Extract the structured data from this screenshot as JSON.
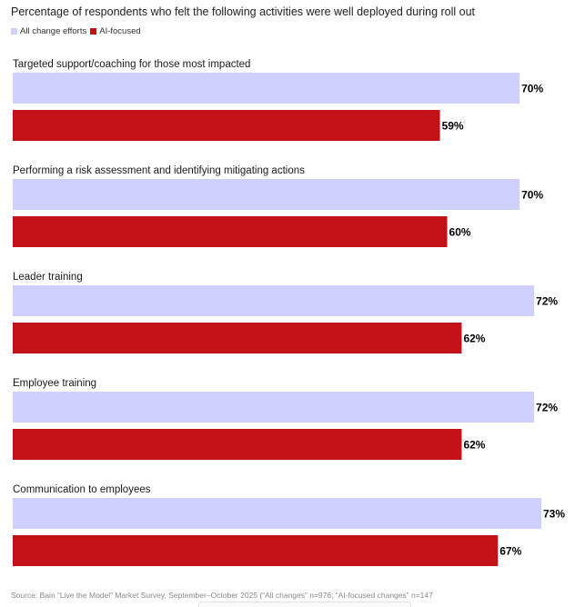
{
  "chart_data": {
    "type": "bar",
    "orientation": "horizontal",
    "title": "Percentage of respondents who felt the following activities were well deployed during roll out",
    "categories": [
      "Targeted support/coaching for those most impacted",
      "Performing a risk assessment and identifying mitigating actions",
      "Leader training",
      "Employee training",
      "Communication to employees"
    ],
    "series": [
      {
        "name": "All change efforts",
        "color": "#d0d0ff",
        "values": [
          70,
          70,
          72,
          72,
          73
        ]
      },
      {
        "name": "AI-focused",
        "color": "#c41118",
        "values": [
          59,
          60,
          62,
          62,
          67
        ]
      }
    ],
    "value_suffix": "%",
    "xlim": [
      0,
      73
    ],
    "legend_position": "top-left",
    "grid": false
  },
  "source": "Source: Bain “Live the Model” Market Survey, September–October 2025 (“All changes” n=976; “AI-focused changes” n=147"
}
